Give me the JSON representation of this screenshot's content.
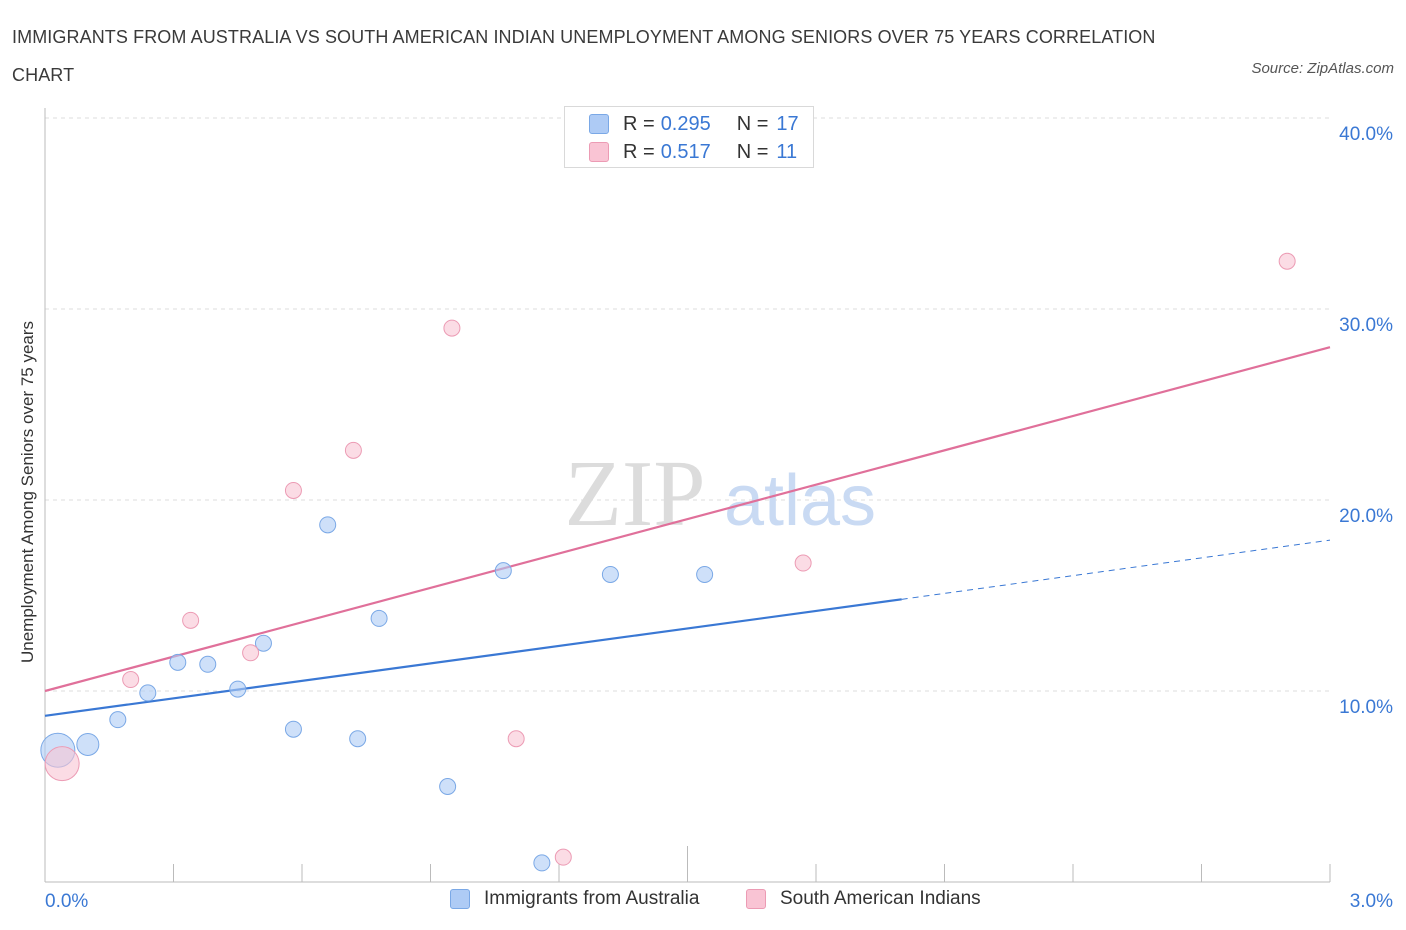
{
  "header": {
    "title": "IMMIGRANTS FROM AUSTRALIA VS SOUTH AMERICAN INDIAN UNEMPLOYMENT AMONG SENIORS OVER 75 YEARS CORRELATION CHART",
    "source": "Source: ZipAtlas.com"
  },
  "watermark": {
    "zip": "ZIP",
    "atlas": "atlas"
  },
  "legend_top": {
    "rows": [
      {
        "r_label": "R =",
        "r_value": "0.295",
        "n_label": "N =",
        "n_value": "17",
        "color": "#aecbf5",
        "border": "#7aa8e6"
      },
      {
        "r_label": "R =",
        "r_value": "0.517",
        "n_label": "N =",
        "n_value": "11",
        "color": "#f9c4d4",
        "border": "#ec9bb4"
      }
    ]
  },
  "chart_data": {
    "type": "scatter",
    "title": "IMMIGRANTS FROM AUSTRALIA VS SOUTH AMERICAN INDIAN UNEMPLOYMENT AMONG SENIORS OVER 75 YEARS CORRELATION CHART",
    "xlabel": "",
    "ylabel": "Unemployment Among Seniors over 75 years",
    "xlim": [
      0,
      3.0
    ],
    "ylim": [
      0,
      40
    ],
    "x_tick_labels": [
      "0.0%",
      "3.0%"
    ],
    "y_ticks": [
      10,
      20,
      30,
      40
    ],
    "y_tick_labels": [
      "10.0%",
      "20.0%",
      "30.0%",
      "40.0%"
    ],
    "grid": true,
    "legend_position": "bottom",
    "series": [
      {
        "name": "Immigrants from Australia",
        "color": "#aecbf5",
        "stroke": "#7aa8e6",
        "line_color": "#3a78d4",
        "points": [
          {
            "x": 0.03,
            "y": 6.9,
            "size": "large"
          },
          {
            "x": 0.1,
            "y": 7.2,
            "size": "medium"
          },
          {
            "x": 0.17,
            "y": 8.5
          },
          {
            "x": 0.24,
            "y": 9.9
          },
          {
            "x": 0.31,
            "y": 11.5
          },
          {
            "x": 0.38,
            "y": 11.4
          },
          {
            "x": 0.45,
            "y": 10.1
          },
          {
            "x": 0.51,
            "y": 12.5
          },
          {
            "x": 0.58,
            "y": 8.0
          },
          {
            "x": 0.66,
            "y": 18.7
          },
          {
            "x": 0.73,
            "y": 7.5
          },
          {
            "x": 0.78,
            "y": 13.8
          },
          {
            "x": 0.94,
            "y": 5.0
          },
          {
            "x": 1.07,
            "y": 16.3
          },
          {
            "x": 1.16,
            "y": 1.0
          },
          {
            "x": 1.32,
            "y": 16.1
          },
          {
            "x": 1.54,
            "y": 16.1
          }
        ],
        "trend": {
          "x0": 0.0,
          "y0": 8.7,
          "x1": 2.0,
          "y1": 14.8,
          "dashed_to_x": 3.0,
          "dashed_to_y": 17.9
        }
      },
      {
        "name": "South American Indians",
        "color": "#f9c4d4",
        "stroke": "#ec9bb4",
        "line_color": "#e0709a",
        "points": [
          {
            "x": 0.04,
            "y": 6.2,
            "size": "large"
          },
          {
            "x": 0.2,
            "y": 10.6
          },
          {
            "x": 0.34,
            "y": 13.7
          },
          {
            "x": 0.48,
            "y": 12.0
          },
          {
            "x": 0.58,
            "y": 20.5
          },
          {
            "x": 0.72,
            "y": 22.6
          },
          {
            "x": 0.95,
            "y": 29.0
          },
          {
            "x": 1.1,
            "y": 7.5
          },
          {
            "x": 1.21,
            "y": 1.3
          },
          {
            "x": 1.77,
            "y": 16.7
          },
          {
            "x": 2.9,
            "y": 32.5
          }
        ],
        "trend": {
          "x0": 0.0,
          "y0": 10.0,
          "x1": 3.0,
          "y1": 28.0
        }
      }
    ]
  },
  "legend_bottom": {
    "items": [
      {
        "label": "Immigrants from Australia",
        "color": "#aecbf5",
        "border": "#7aa8e6"
      },
      {
        "label": "South American Indians",
        "color": "#f9c4d4",
        "border": "#ec9bb4"
      }
    ]
  }
}
